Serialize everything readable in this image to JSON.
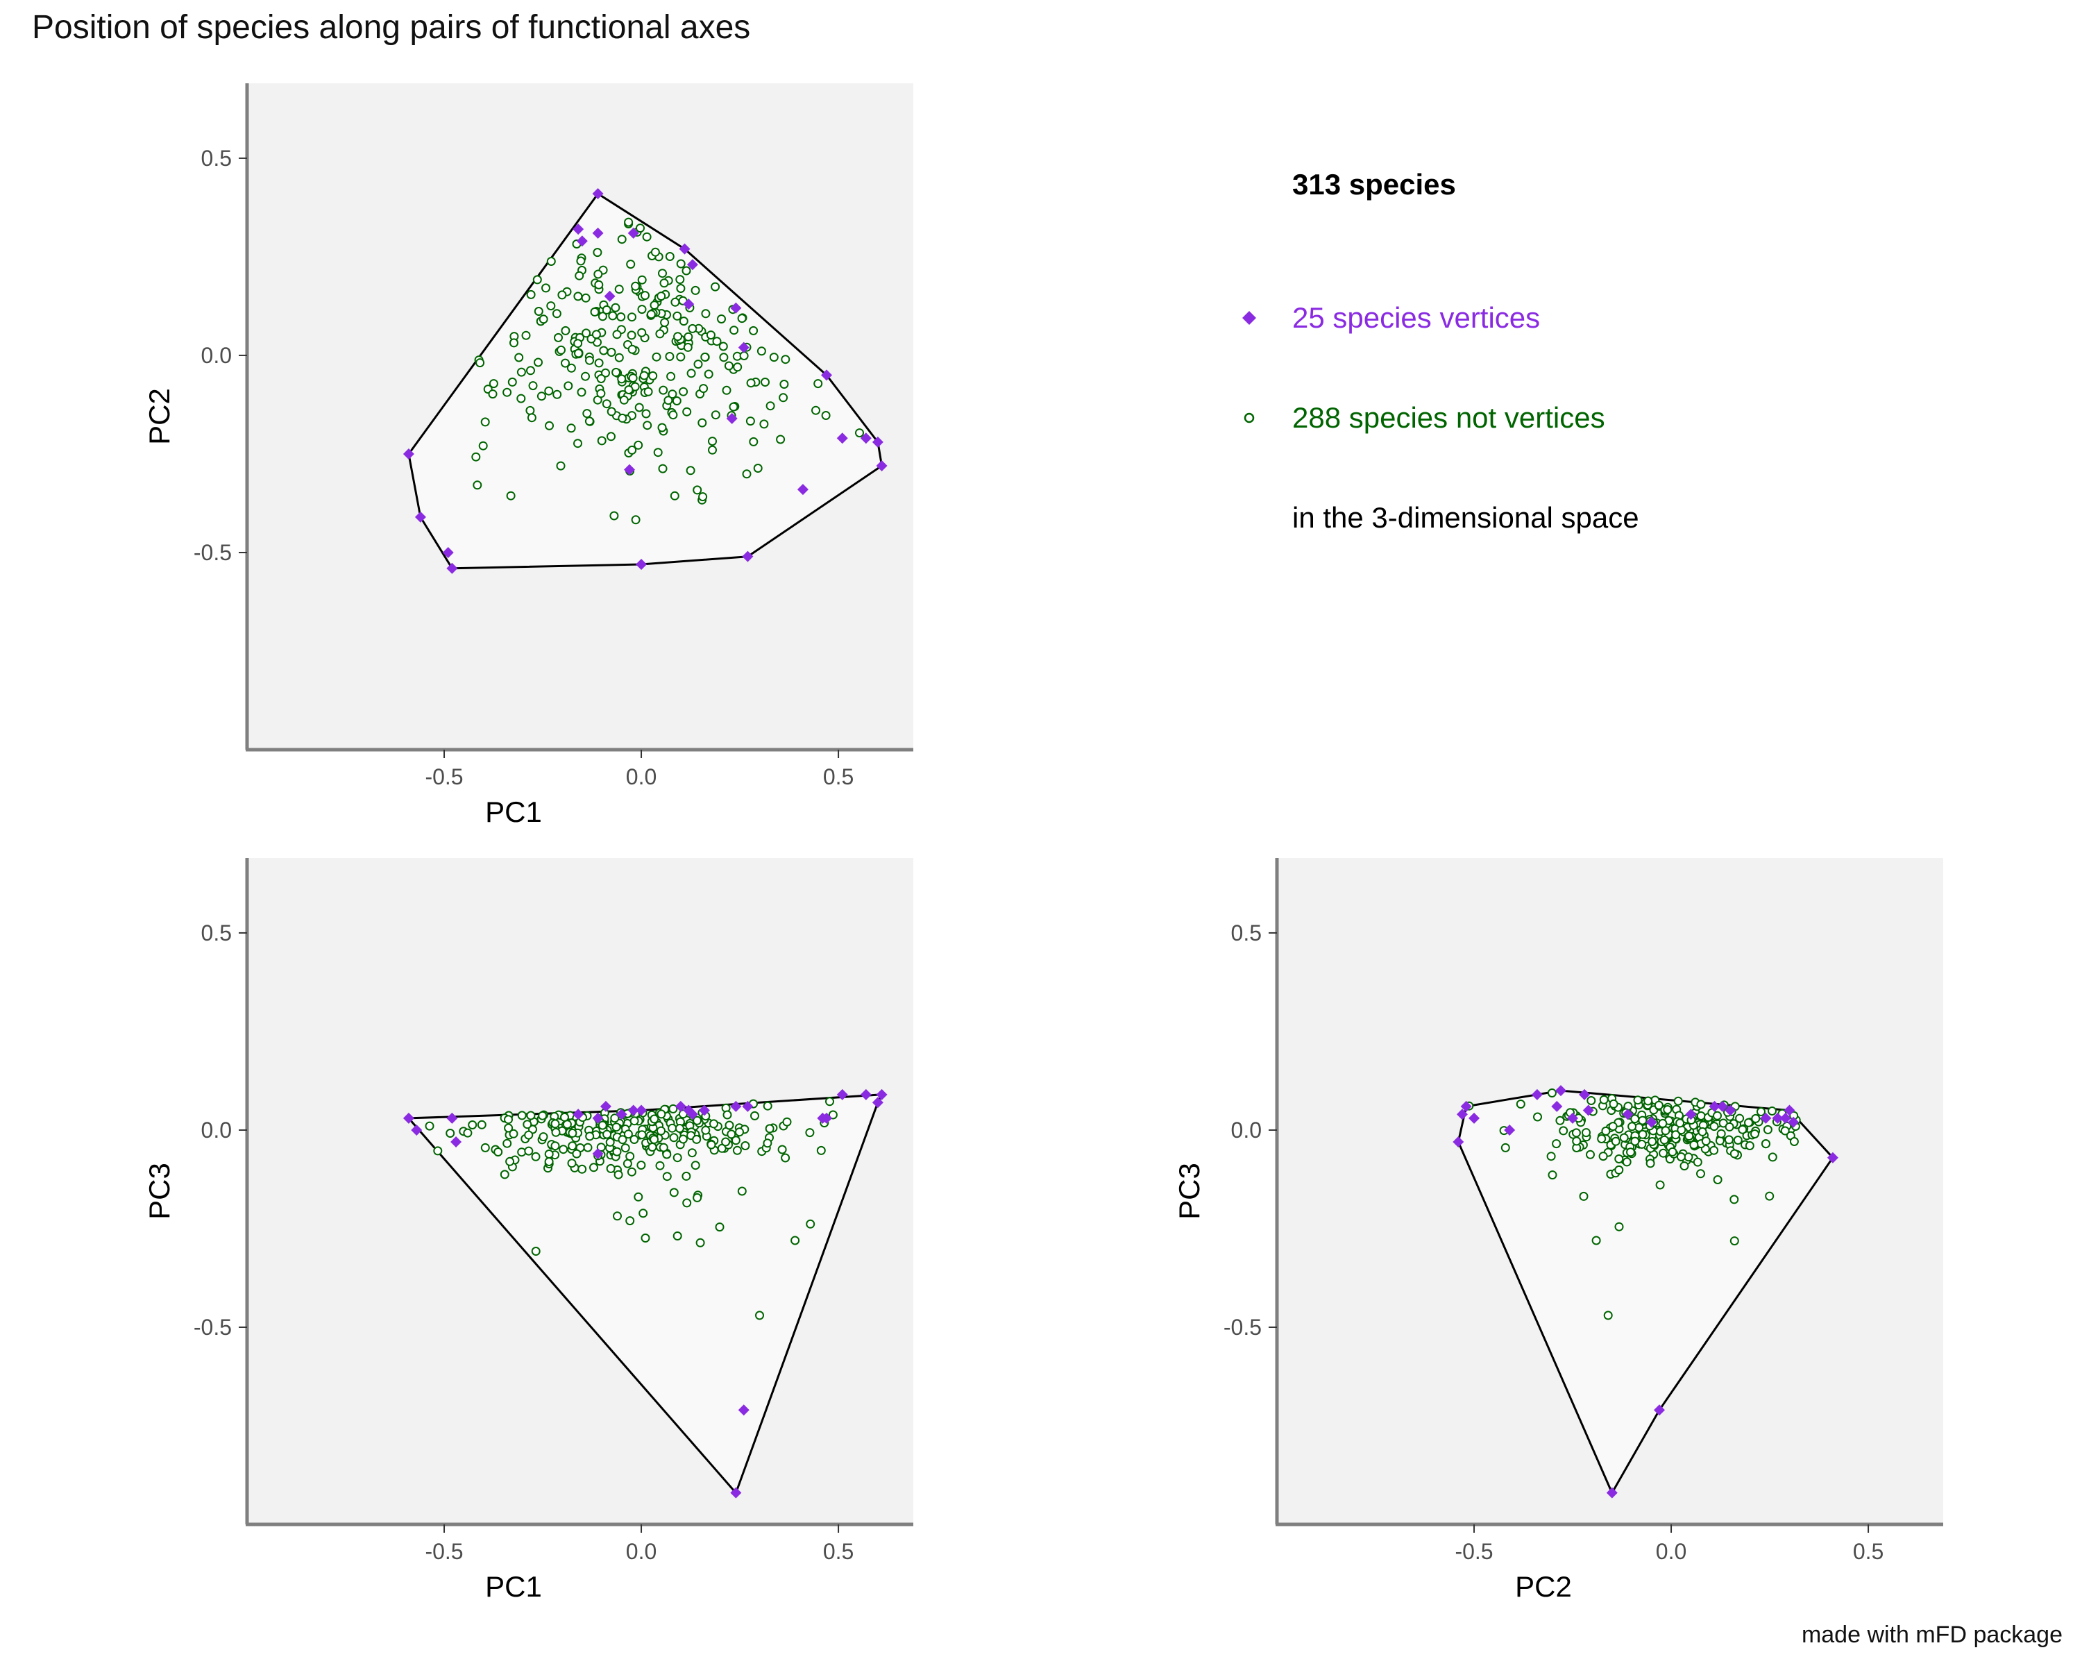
{
  "title": "Position of species along pairs of functional axes",
  "caption": "made with mFD package",
  "legend": {
    "header": "313 species",
    "vertices_label": "25 species vertices",
    "nonvertices_label": "288 species not vertices",
    "space_label": "in the 3-dimensional space"
  },
  "colors": {
    "vertices": "#8a2be2",
    "nonvertices": "#006400",
    "panel_bg": "#f2f2f2",
    "hull_fill": "#f9f9f9",
    "axis": "#7f7f7f"
  },
  "chart_data": [
    {
      "type": "scatter",
      "name": "PC1 vs PC2",
      "xlabel": "PC1",
      "ylabel": "PC2",
      "xlim": [
        -1.0,
        0.69
      ],
      "ylim": [
        -1.0,
        0.69
      ],
      "xticks": [
        -0.5,
        0.0,
        0.5
      ],
      "xtick_labels": [
        "-0.5",
        "0.0",
        "0.5"
      ],
      "yticks": [
        -0.5,
        0.0,
        0.5
      ],
      "ytick_labels": [
        "-0.5",
        "0.0",
        "0.5"
      ],
      "hull": [
        [
          -0.11,
          0.41
        ],
        [
          0.11,
          0.27
        ],
        [
          0.47,
          -0.05
        ],
        [
          0.6,
          -0.22
        ],
        [
          0.61,
          -0.28
        ],
        [
          0.27,
          -0.51
        ],
        [
          0.0,
          -0.53
        ],
        [
          -0.48,
          -0.54
        ],
        [
          -0.56,
          -0.41
        ],
        [
          -0.59,
          -0.25
        ]
      ],
      "vertices": [
        [
          -0.11,
          0.41
        ],
        [
          0.11,
          0.27
        ],
        [
          0.47,
          -0.05
        ],
        [
          0.6,
          -0.22
        ],
        [
          0.61,
          -0.28
        ],
        [
          0.27,
          -0.51
        ],
        [
          0.0,
          -0.53
        ],
        [
          -0.48,
          -0.54
        ],
        [
          -0.56,
          -0.41
        ],
        [
          -0.59,
          -0.25
        ],
        [
          -0.16,
          0.32
        ],
        [
          -0.11,
          0.31
        ],
        [
          -0.15,
          0.29
        ],
        [
          -0.02,
          0.31
        ],
        [
          0.13,
          0.23
        ],
        [
          -0.08,
          0.15
        ],
        [
          0.12,
          0.13
        ],
        [
          0.24,
          0.12
        ],
        [
          0.26,
          0.02
        ],
        [
          0.23,
          -0.16
        ],
        [
          0.51,
          -0.21
        ],
        [
          0.57,
          -0.21
        ],
        [
          0.41,
          -0.34
        ],
        [
          -0.03,
          -0.29
        ],
        [
          -0.49,
          -0.5
        ]
      ],
      "nonvertices": "deterministic-cloud-1"
    },
    {
      "type": "scatter",
      "name": "PC1 vs PC3",
      "xlabel": "PC1",
      "ylabel": "PC3",
      "xlim": [
        -1.0,
        0.69
      ],
      "ylim": [
        -1.0,
        0.69
      ],
      "xticks": [
        -0.5,
        0.0,
        0.5
      ],
      "xtick_labels": [
        "-0.5",
        "0.0",
        "0.5"
      ],
      "yticks": [
        -0.5,
        0.0,
        0.5
      ],
      "ytick_labels": [
        "-0.5",
        "0.0",
        "0.5"
      ],
      "hull": [
        [
          -0.59,
          0.03
        ],
        [
          0.0,
          0.05
        ],
        [
          0.3,
          0.07
        ],
        [
          0.61,
          0.09
        ],
        [
          0.6,
          0.07
        ],
        [
          0.24,
          -0.92
        ]
      ],
      "vertices": [
        [
          -0.59,
          0.03
        ],
        [
          -0.57,
          0.0
        ],
        [
          -0.48,
          0.03
        ],
        [
          -0.47,
          -0.03
        ],
        [
          -0.16,
          0.04
        ],
        [
          -0.11,
          0.03
        ],
        [
          -0.09,
          0.06
        ],
        [
          -0.05,
          0.04
        ],
        [
          -0.02,
          0.05
        ],
        [
          0.0,
          0.05
        ],
        [
          0.1,
          0.06
        ],
        [
          0.12,
          0.05
        ],
        [
          0.16,
          0.05
        ],
        [
          0.24,
          0.06
        ],
        [
          0.27,
          0.06
        ],
        [
          0.46,
          0.03
        ],
        [
          0.47,
          0.03
        ],
        [
          0.51,
          0.09
        ],
        [
          0.57,
          0.09
        ],
        [
          0.61,
          0.09
        ],
        [
          0.6,
          0.07
        ],
        [
          0.26,
          -0.71
        ],
        [
          0.24,
          -0.92
        ],
        [
          -0.11,
          -0.06
        ],
        [
          0.13,
          0.04
        ]
      ],
      "nonvertices": "deterministic-cloud-2"
    },
    {
      "type": "scatter",
      "name": "PC2 vs PC3",
      "xlabel": "PC2",
      "ylabel": "PC3",
      "xlim": [
        -1.0,
        0.69
      ],
      "ylim": [
        -1.0,
        0.69
      ],
      "xticks": [
        -0.5,
        0.0,
        0.5
      ],
      "xtick_labels": [
        "-0.5",
        "0.0",
        "0.5"
      ],
      "yticks": [
        -0.5,
        0.0,
        0.5
      ],
      "ytick_labels": [
        "-0.5",
        "0.0",
        "0.5"
      ],
      "hull": [
        [
          -0.54,
          -0.03
        ],
        [
          -0.52,
          0.06
        ],
        [
          -0.28,
          0.1
        ],
        [
          0.3,
          0.05
        ],
        [
          0.41,
          -0.07
        ],
        [
          -0.03,
          -0.71
        ],
        [
          -0.15,
          -0.92
        ]
      ],
      "vertices": [
        [
          -0.54,
          -0.03
        ],
        [
          -0.52,
          0.06
        ],
        [
          -0.53,
          0.04
        ],
        [
          -0.5,
          0.03
        ],
        [
          -0.41,
          0.0
        ],
        [
          -0.34,
          0.09
        ],
        [
          -0.28,
          0.1
        ],
        [
          -0.29,
          0.06
        ],
        [
          -0.22,
          0.09
        ],
        [
          -0.21,
          0.05
        ],
        [
          -0.11,
          0.04
        ],
        [
          -0.05,
          0.02
        ],
        [
          0.11,
          0.06
        ],
        [
          0.13,
          0.06
        ],
        [
          0.15,
          0.05
        ],
        [
          0.24,
          0.03
        ],
        [
          0.27,
          0.03
        ],
        [
          0.29,
          0.03
        ],
        [
          0.3,
          0.05
        ],
        [
          0.31,
          0.02
        ],
        [
          0.41,
          -0.07
        ],
        [
          -0.03,
          -0.71
        ],
        [
          -0.15,
          -0.92
        ],
        [
          0.05,
          0.04
        ],
        [
          -0.25,
          0.03
        ]
      ],
      "nonvertices": "deterministic-cloud-3"
    }
  ]
}
